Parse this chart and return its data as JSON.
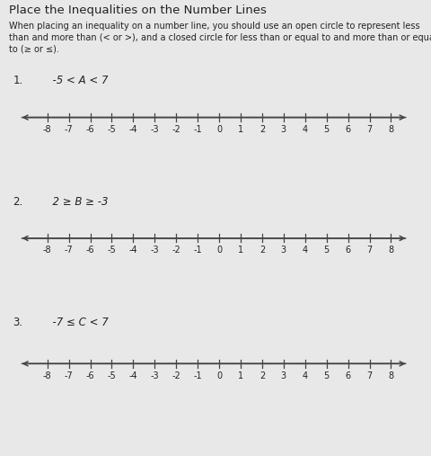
{
  "title": "Place the Inequalities on the Number Lines",
  "instructions_line1": "When placing an inequality on a number line, you should use an open circle to represent less",
  "instructions_line2": "than and more than (< or >), and a closed circle for less than or equal to and more than or equal",
  "instructions_line3": "to (≥ or ≤).",
  "problems": [
    {
      "number": "1.",
      "label": "  -5 < A < 7"
    },
    {
      "number": "2.",
      "label": "  2 ≥ B ≥ -3"
    },
    {
      "number": "3.",
      "label": "  -7 ≤ C < 7"
    }
  ],
  "number_line": {
    "xmin": -9.8,
    "xmax": 9.3,
    "tick_positions": [
      -8,
      -7,
      -6,
      -5,
      -4,
      -3,
      -2,
      -1,
      0,
      1,
      2,
      3,
      4,
      5,
      6,
      7,
      8
    ]
  },
  "background_color": "#e8e8e8",
  "text_color": "#222222",
  "line_color": "#444444",
  "title_fontsize": 9.5,
  "instr_fontsize": 7.0,
  "prob_fontsize": 8.5,
  "tick_fontsize": 7.0
}
